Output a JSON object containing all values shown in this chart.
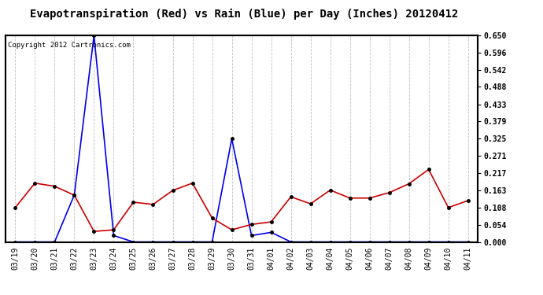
{
  "title": "Evapotranspiration (Red) vs Rain (Blue) per Day (Inches) 20120412",
  "copyright_text": "Copyright 2012 Cartronics.com",
  "dates": [
    "03/19",
    "03/20",
    "03/21",
    "03/22",
    "03/23",
    "03/24",
    "03/25",
    "03/26",
    "03/27",
    "03/28",
    "03/29",
    "03/30",
    "03/31",
    "04/01",
    "04/02",
    "04/03",
    "04/04",
    "04/05",
    "04/06",
    "04/07",
    "04/08",
    "04/09",
    "04/10",
    "04/11"
  ],
  "rain": [
    0.0,
    0.0,
    0.0,
    0.148,
    0.65,
    0.02,
    0.0,
    0.0,
    0.0,
    0.0,
    0.0,
    0.325,
    0.02,
    0.03,
    0.0,
    0.0,
    0.0,
    0.0,
    0.0,
    0.0,
    0.0,
    0.0,
    0.0,
    0.0
  ],
  "et": [
    0.108,
    0.185,
    0.175,
    0.147,
    0.033,
    0.038,
    0.125,
    0.118,
    0.162,
    0.185,
    0.075,
    0.038,
    0.055,
    0.063,
    0.142,
    0.12,
    0.163,
    0.138,
    0.138,
    0.155,
    0.183,
    0.228,
    0.108,
    0.13
  ],
  "ylim_min": 0.0,
  "ylim_max": 0.65,
  "ytick_values": [
    0.0,
    0.054,
    0.108,
    0.163,
    0.217,
    0.271,
    0.325,
    0.379,
    0.433,
    0.488,
    0.542,
    0.596,
    0.65
  ],
  "rain_color": "#0000EE",
  "et_color": "#CC0000",
  "bg_color": "#FFFFFF",
  "plot_bg_color": "#FFFFFF",
  "grid_color": "#C0C0C0",
  "title_fontsize": 10,
  "tick_fontsize": 7,
  "copyright_fontsize": 6.5,
  "marker_size": 3.0,
  "linewidth": 1.2
}
